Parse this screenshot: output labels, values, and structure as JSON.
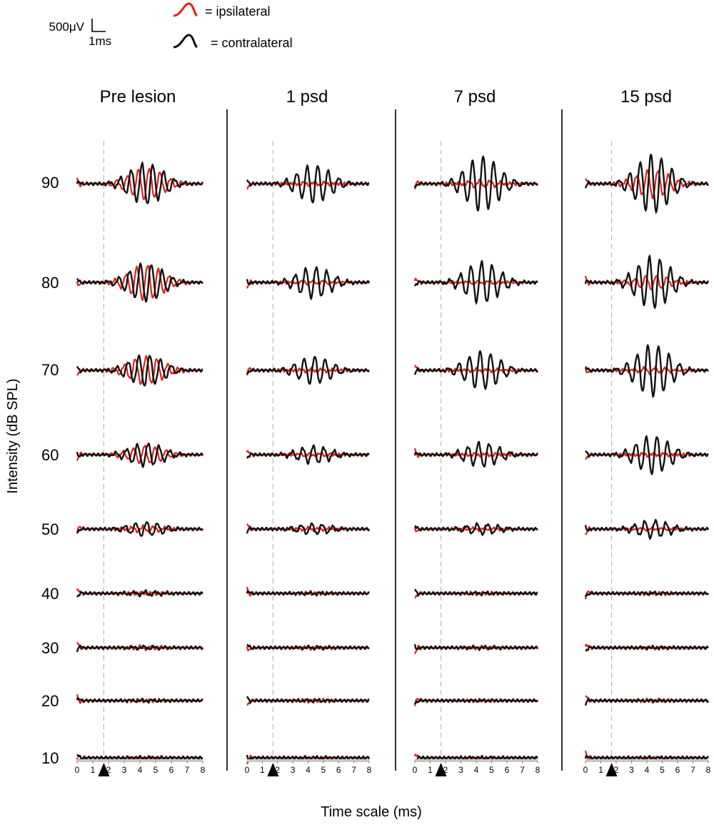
{
  "legend": {
    "ipsilateral_label": "= ipsilateral",
    "contralateral_label": "= contralateral",
    "ipsilateral_color": "#e2231a",
    "contralateral_color": "#111111"
  },
  "scale_bar": {
    "amplitude": "500μV",
    "time": "1ms"
  },
  "chart_data": {
    "type": "line",
    "xlabel": "Time scale (ms)",
    "ylabel": "Intensity (dB SPL)",
    "x_range": [
      0,
      8
    ],
    "x_ticks": [
      "0",
      "1",
      "2",
      "3",
      "4",
      "5",
      "6",
      "7",
      "8"
    ],
    "intensities": [
      "90",
      "80",
      "70",
      "60",
      "50",
      "40",
      "30",
      "20",
      "10"
    ],
    "reference_latency_ms": 1.7,
    "series": [
      {
        "name": "= ipsilateral",
        "color": "#e2231a"
      },
      {
        "name": "= contralateral",
        "color": "#111111"
      }
    ],
    "panels": [
      {
        "title": "Pre lesion",
        "contra_amp": [
          0.6,
          0.55,
          0.45,
          0.33,
          0.2,
          0.06,
          0.04,
          0.03,
          0.02
        ],
        "ipsi_amp": [
          0.45,
          0.5,
          0.4,
          0.25,
          0.08,
          0.04,
          0.04,
          0.03,
          0.03
        ]
      },
      {
        "title": "1 psd",
        "contra_amp": [
          0.55,
          0.45,
          0.4,
          0.25,
          0.15,
          0.03,
          0.03,
          0.03,
          0.02
        ],
        "ipsi_amp": [
          0.05,
          0.05,
          0.04,
          0.04,
          0.04,
          0.03,
          0.03,
          0.03,
          0.02
        ]
      },
      {
        "title": "7 psd",
        "contra_amp": [
          0.8,
          0.6,
          0.55,
          0.35,
          0.15,
          0.03,
          0.03,
          0.02,
          0.02
        ],
        "ipsi_amp": [
          0.1,
          0.04,
          0.04,
          0.04,
          0.03,
          0.03,
          0.03,
          0.02,
          0.02
        ]
      },
      {
        "title": "15 psd",
        "contra_amp": [
          0.85,
          0.75,
          0.75,
          0.55,
          0.25,
          0.03,
          0.02,
          0.02,
          0.02
        ],
        "ipsi_amp": [
          0.4,
          0.2,
          0.08,
          0.04,
          0.03,
          0.03,
          0.03,
          0.03,
          0.02
        ]
      }
    ]
  }
}
